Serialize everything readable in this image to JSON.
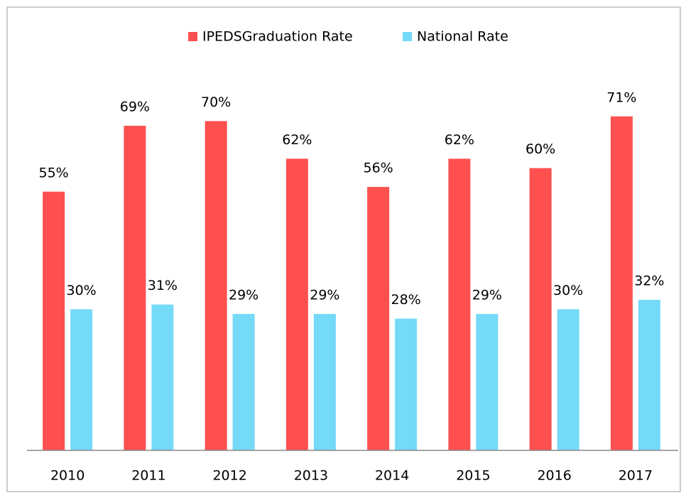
{
  "chart_data": {
    "type": "bar",
    "categories": [
      "2010",
      "2011",
      "2012",
      "2013",
      "2014",
      "2015",
      "2016",
      "2017"
    ],
    "series": [
      {
        "name": "IPEDSGraduation Rate",
        "color": "#ff5050",
        "values": [
          55,
          69,
          70,
          62,
          56,
          62,
          60,
          71
        ],
        "value_labels": [
          "55%",
          "69%",
          "70%",
          "62%",
          "56%",
          "62%",
          "60%",
          "71%"
        ]
      },
      {
        "name": "National Rate",
        "color": "#75d9f8",
        "values": [
          30,
          31,
          29,
          29,
          28,
          29,
          30,
          32
        ],
        "value_labels": [
          "30%",
          "31%",
          "29%",
          "29%",
          "28%",
          "29%",
          "30%",
          "32%"
        ]
      }
    ],
    "ylim": [
      0,
      90
    ],
    "legend": "top"
  }
}
